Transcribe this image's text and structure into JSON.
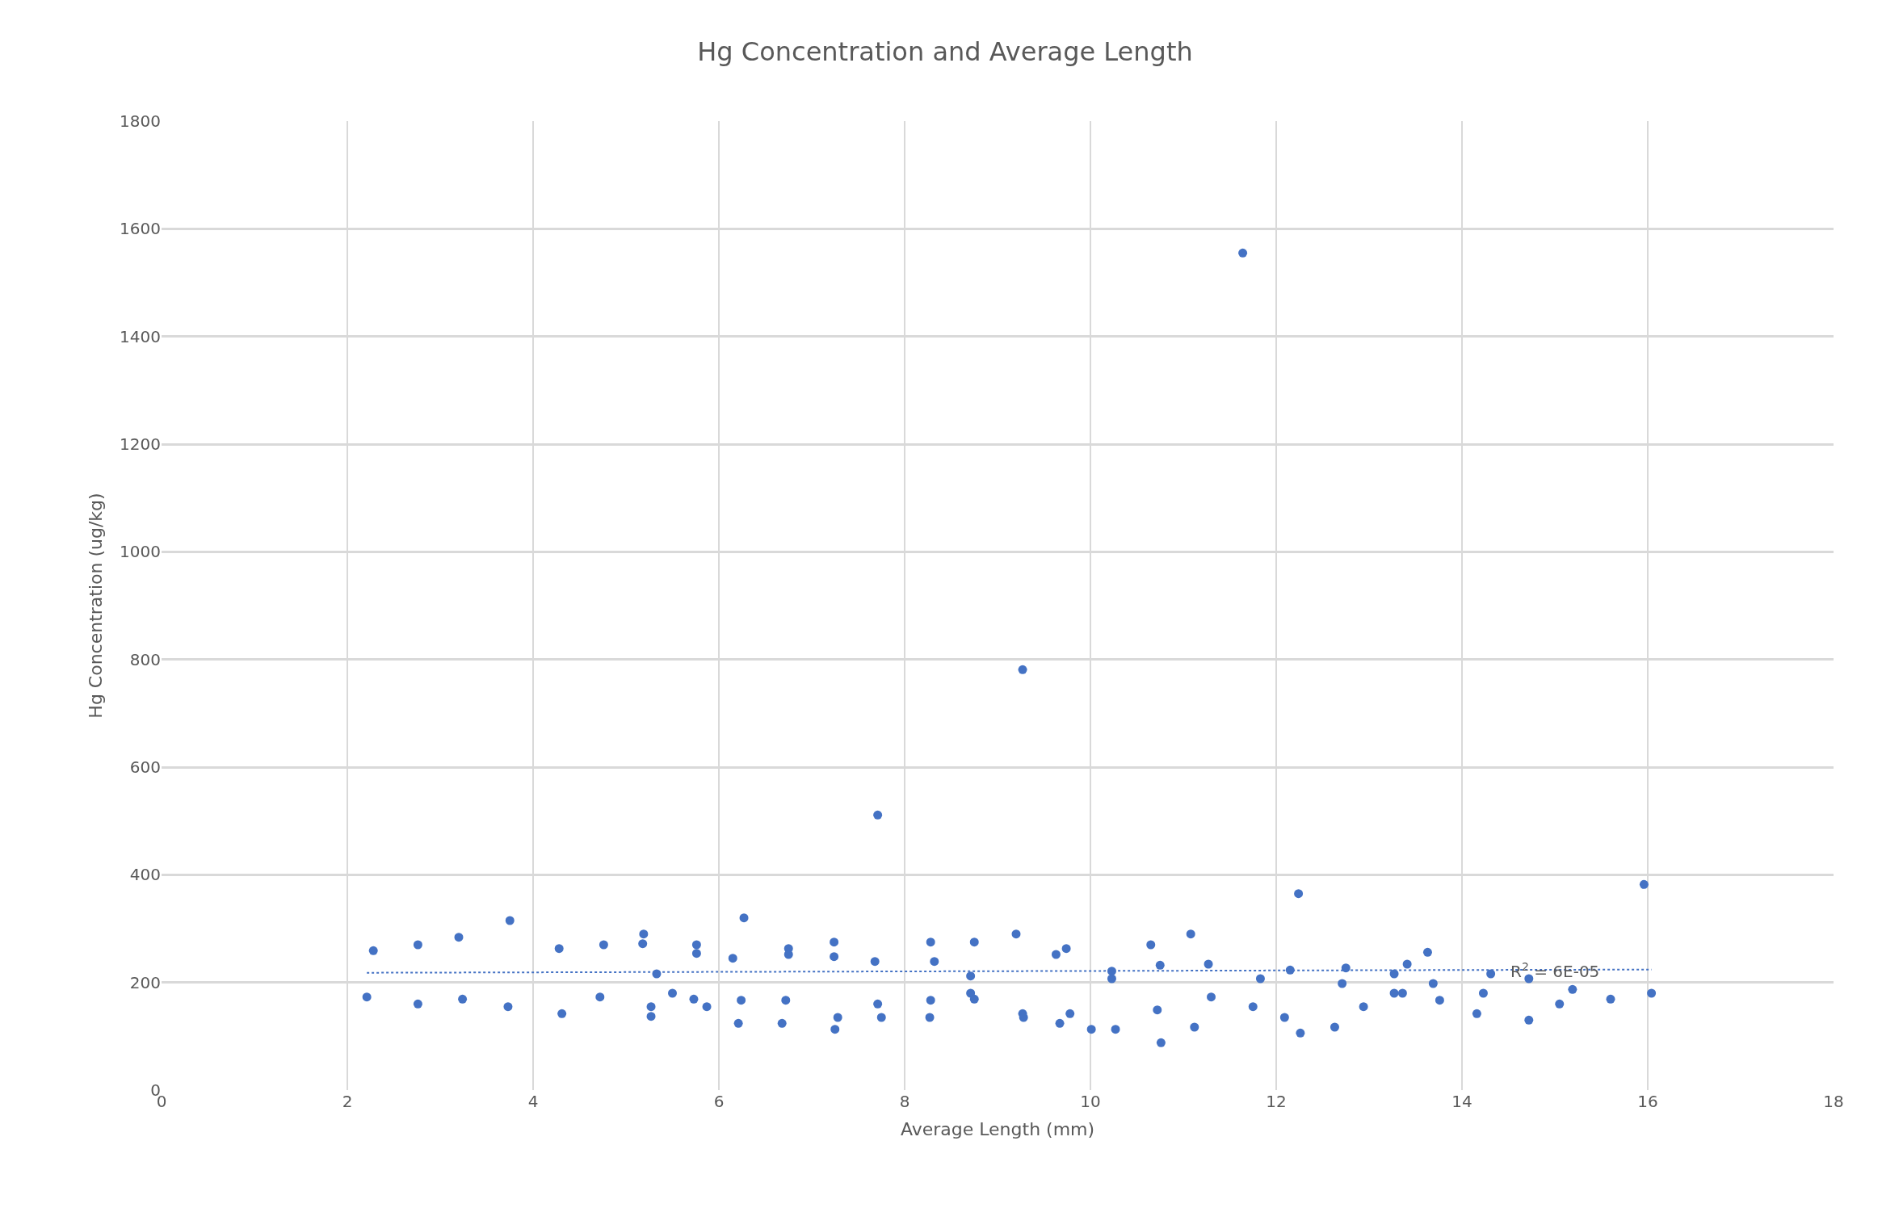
{
  "chart_data": {
    "type": "scatter",
    "title": "Hg Concentration and Average Length",
    "xlabel": "Average Length (mm)",
    "ylabel": "Hg Concentration (ug/kg)",
    "xlim": [
      0,
      18
    ],
    "xticks": [
      0,
      2,
      4,
      6,
      8,
      10,
      12,
      14,
      16,
      18
    ],
    "ylim": [
      0,
      1800
    ],
    "yticks": [
      0,
      200,
      400,
      600,
      800,
      1000,
      1200,
      1400,
      1600,
      1800
    ],
    "grid": true,
    "marker": "circle",
    "annotations": [
      {
        "text": "R$^{2}$ = 6E-05",
        "x": 15.0,
        "y": 222
      }
    ],
    "series": [
      {
        "color": "#4472c4",
        "x": [
          2.21,
          2.28,
          2.76,
          2.76,
          3.2,
          3.24,
          3.75,
          3.73,
          4.28,
          4.31,
          4.72,
          4.76,
          5.19,
          5.18,
          5.33,
          5.27,
          5.27,
          5.5,
          5.73,
          5.76,
          5.76,
          5.87,
          6.15,
          6.27,
          6.21,
          6.24,
          6.75,
          6.75,
          6.72,
          6.68,
          7.24,
          7.24,
          7.28,
          7.25,
          7.68,
          7.71,
          7.71,
          7.75,
          8.28,
          8.32,
          8.28,
          8.27,
          8.75,
          8.71,
          8.71,
          8.75,
          9.2,
          9.27,
          9.27,
          9.28,
          9.63,
          9.74,
          9.67,
          9.78,
          10.01,
          10.23,
          10.23,
          10.27,
          10.65,
          10.75,
          10.72,
          10.76,
          11.08,
          11.12,
          11.27,
          11.3,
          11.64,
          11.75,
          11.83,
          12.09,
          12.15,
          12.24,
          12.26,
          12.63,
          12.71,
          12.75,
          12.94,
          13.27,
          13.27,
          13.36,
          13.41,
          13.63,
          13.69,
          13.76,
          14.16,
          14.23,
          14.31,
          14.72,
          14.72,
          15.05,
          15.19,
          15.6,
          15.96,
          16.04
        ],
        "values": [
          173,
          259,
          270,
          160,
          284,
          169,
          315,
          155,
          263,
          142,
          173,
          270,
          290,
          272,
          216,
          155,
          137,
          180,
          169,
          270,
          254,
          155,
          245,
          320,
          124,
          167,
          263,
          252,
          167,
          124,
          275,
          248,
          135,
          113,
          239,
          511,
          160,
          135,
          275,
          239,
          167,
          135,
          275,
          212,
          180,
          169,
          290,
          781,
          142,
          135,
          252,
          263,
          124,
          142,
          113,
          221,
          207,
          113,
          270,
          232,
          149,
          88,
          290,
          117,
          234,
          173,
          1555,
          155,
          207,
          135,
          223,
          365,
          106,
          117,
          198,
          227,
          155,
          216,
          180,
          180,
          234,
          256,
          198,
          167,
          142,
          180,
          216,
          207,
          130,
          160,
          187,
          169,
          382,
          180
        ]
      },
      {
        "type": "line",
        "color": "#4472c4",
        "line_style": "dotted",
        "marker": "none",
        "x": [
          2.21,
          16.04
        ],
        "values": [
          218,
          224
        ]
      }
    ]
  }
}
